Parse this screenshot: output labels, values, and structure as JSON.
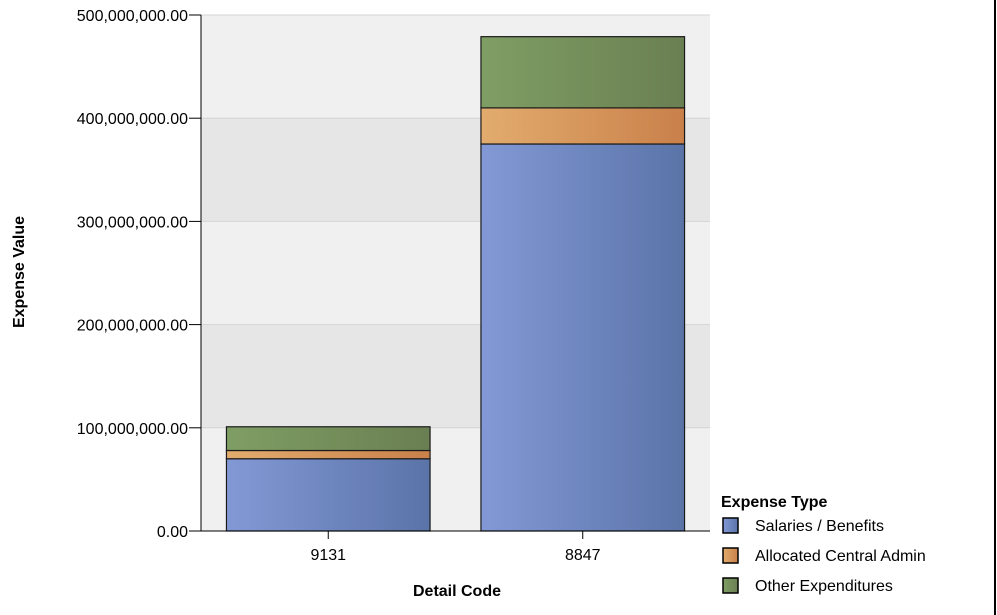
{
  "chart_data": {
    "type": "bar",
    "stacked": true,
    "xlabel": "Detail Code",
    "ylabel": "Expense Value",
    "ylim": [
      0,
      500000000
    ],
    "yticks": [
      0,
      100000000,
      200000000,
      300000000,
      400000000,
      500000000
    ],
    "ytick_labels": [
      "0.00",
      "100,000,000.00",
      "200,000,000.00",
      "300,000,000.00",
      "400,000,000.00",
      "500,000,000.00"
    ],
    "categories": [
      "9131",
      "8847"
    ],
    "series": [
      {
        "name": "Salaries / Benefits",
        "values": [
          70000000,
          375000000
        ],
        "color": "#6f88c6"
      },
      {
        "name": "Allocated Central Admin",
        "values": [
          8000000,
          35000000
        ],
        "color": "#d99a5e"
      },
      {
        "name": "Other Expenditures",
        "values": [
          23000000,
          69000000
        ],
        "color": "#6f8f5a"
      }
    ],
    "legend_title": "Expense Type",
    "legend_position": "bottom-right",
    "grid": true
  }
}
